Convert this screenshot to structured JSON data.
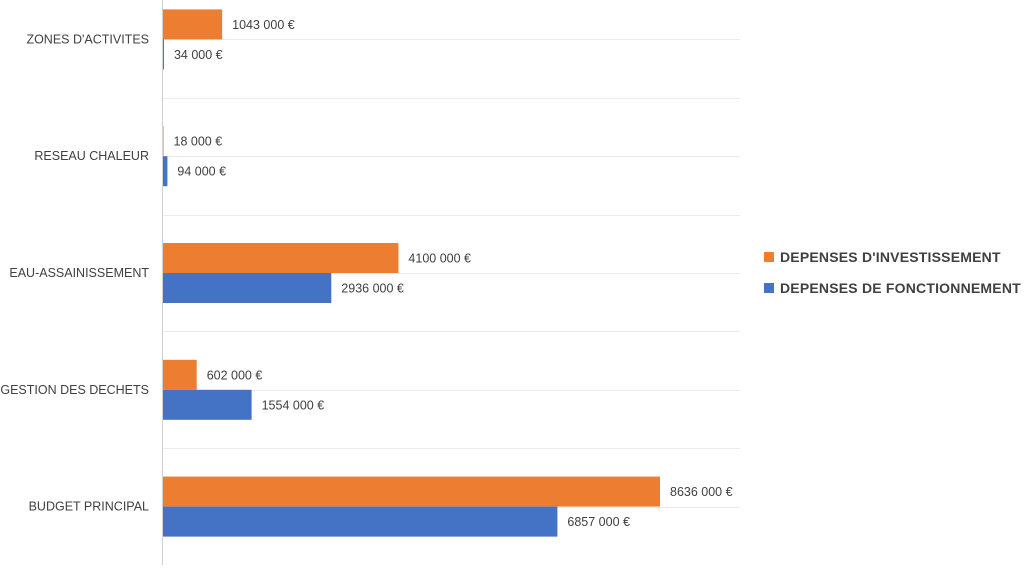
{
  "chart_data": {
    "type": "bar",
    "orientation": "horizontal",
    "categories": [
      "ZONES D'ACTIVITES",
      "RESEAU CHALEUR",
      "EAU-ASSAINISSEMENT",
      "GESTION DES DECHETS",
      "BUDGET PRINCIPAL"
    ],
    "series": [
      {
        "name": "DEPENSES D'INVESTISSEMENT",
        "color": "#ED7D31",
        "values": [
          1043000,
          18000,
          4100000,
          602000,
          8636000
        ],
        "labels": [
          "1043 000 €",
          "18 000 €",
          "4100 000 €",
          "602 000 €",
          "8636 000 €"
        ]
      },
      {
        "name": "DEPENSES DE FONCTIONNEMENT",
        "color": "#4472C4",
        "values": [
          34000,
          94000,
          2936000,
          1554000,
          6857000
        ],
        "labels": [
          "34 000 €",
          "94 000 €",
          "2936 000 €",
          "1554 000 €",
          "6857 000 €"
        ]
      }
    ],
    "xlim": [
      0,
      10000000
    ],
    "grid": true,
    "legend_position": "right"
  }
}
